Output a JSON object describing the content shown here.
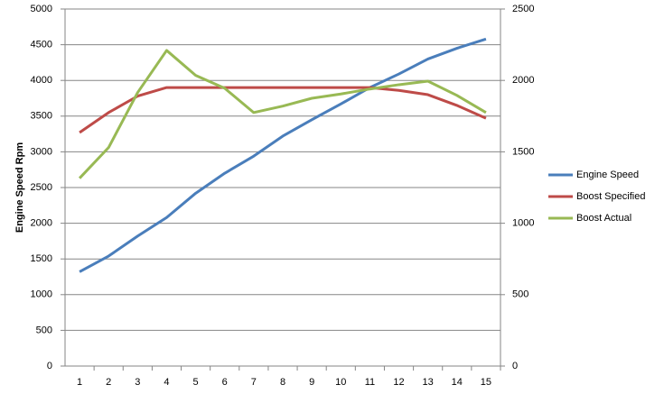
{
  "chart_data": {
    "type": "line",
    "y_label": "Engine Speed Rpm",
    "categories": [
      "1",
      "2",
      "3",
      "4",
      "5",
      "6",
      "7",
      "8",
      "9",
      "10",
      "11",
      "12",
      "13",
      "14",
      "15"
    ],
    "series": [
      {
        "name": "Engine Speed",
        "color": "#4a7ebb",
        "axis": "y",
        "values": [
          1320,
          1540,
          1820,
          2080,
          2420,
          2700,
          2940,
          3220,
          3450,
          3670,
          3900,
          4090,
          4300,
          4450,
          4580
        ]
      },
      {
        "name": "Boost Specified",
        "color": "#be4b48",
        "axis": "y2",
        "values": [
          1635,
          1775,
          1890,
          1950,
          1950,
          1950,
          1950,
          1950,
          1950,
          1950,
          1950,
          1930,
          1900,
          1825,
          1735
        ]
      },
      {
        "name": "Boost Actual",
        "color": "#98b954",
        "axis": "y2",
        "values": [
          1315,
          1530,
          1915,
          2210,
          2035,
          1945,
          1775,
          1820,
          1875,
          1905,
          1940,
          1970,
          1995,
          1895,
          1775
        ]
      }
    ],
    "ylim": [
      0,
      5000
    ],
    "yticks": [
      0,
      500,
      1000,
      1500,
      2000,
      2500,
      3000,
      3500,
      4000,
      4500,
      5000
    ],
    "y2lim": [
      0,
      2500
    ],
    "y2ticks": [
      0,
      500,
      1000,
      1500,
      2000,
      2500
    ],
    "grid": true,
    "legend": "right"
  }
}
